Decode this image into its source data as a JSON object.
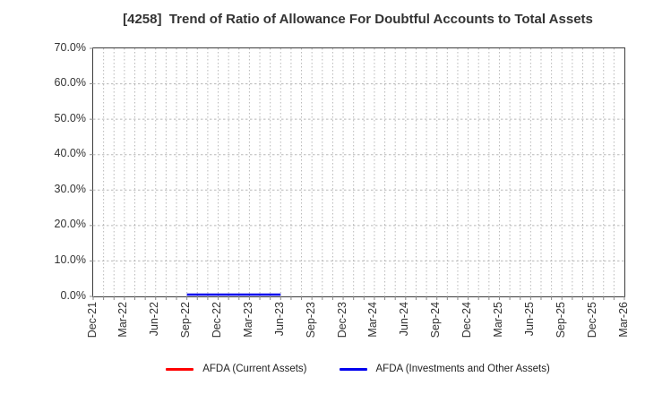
{
  "chart_data": {
    "type": "line",
    "title": "[4258]  Trend of Ratio of Allowance For Doubtful Accounts to Total Assets",
    "x_tick_labels": [
      "Dec-21",
      "Mar-22",
      "Jun-22",
      "Sep-22",
      "Dec-22",
      "Mar-23",
      "Jun-23",
      "Sep-23",
      "Dec-23",
      "Mar-24",
      "Jun-24",
      "Sep-24",
      "Dec-24",
      "Mar-25",
      "Jun-25",
      "Sep-25",
      "Dec-25",
      "Mar-26"
    ],
    "months_per_labeled_tick": 3,
    "y_tick_labels": [
      "0.0%",
      "10.0%",
      "20.0%",
      "30.0%",
      "40.0%",
      "50.0%",
      "60.0%",
      "70.0%"
    ],
    "y_tick_values": [
      0,
      10,
      20,
      30,
      40,
      50,
      60,
      70
    ],
    "ylim": [
      0,
      70
    ],
    "grid": {
      "visible": true,
      "line_style": "dotted",
      "color": "#b8b8b8",
      "vertical_minor": "monthly"
    },
    "axis_color": "#3c3c3c",
    "tick_color": "#888888",
    "text_color": "#333333",
    "legend_position": "bottom-center",
    "series": [
      {
        "name": "AFDA (Current Assets)",
        "color": "#ff0000",
        "points": []
      },
      {
        "name": "AFDA (Investments and Other Assets)",
        "color": "#0000ee",
        "points": [
          {
            "x": "Sep-22",
            "y": 0.5
          },
          {
            "x": "Dec-22",
            "y": 0.5
          },
          {
            "x": "Mar-23",
            "y": 0.5
          },
          {
            "x": "Jun-23",
            "y": 0.5
          }
        ]
      }
    ]
  }
}
